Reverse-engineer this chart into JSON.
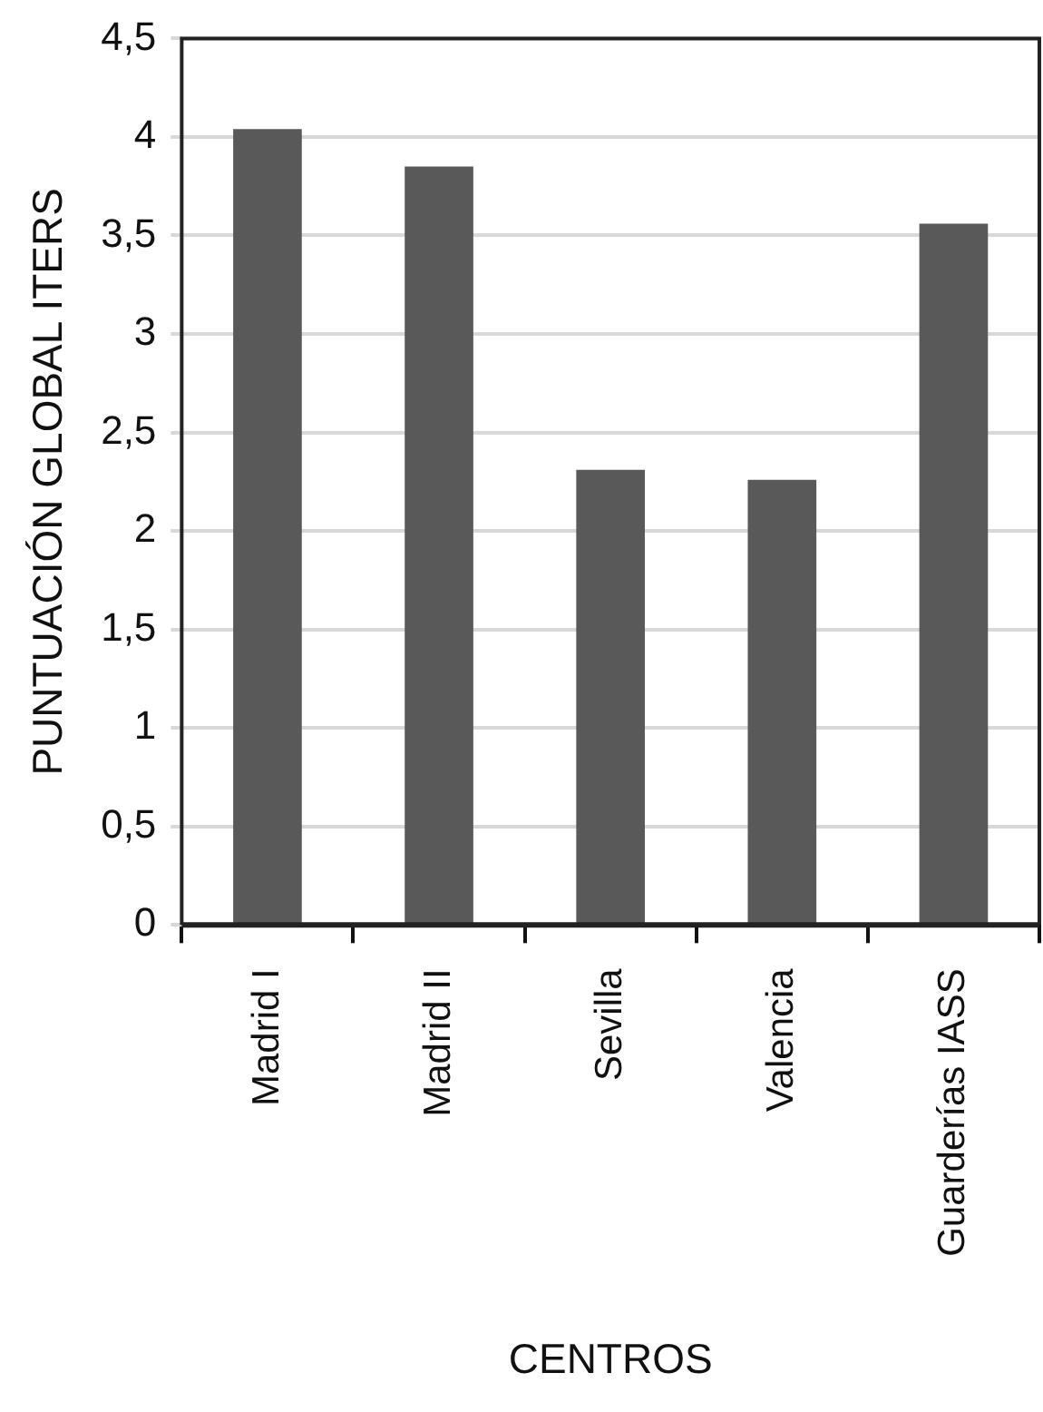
{
  "chart_data": {
    "type": "bar",
    "xlabel": "CENTROS",
    "ylabel": "PUNTUACIÓN GLOBAL ITERS",
    "categories": [
      "Madrid I",
      "Madrid II",
      "Sevilla",
      "Valencia",
      "Guarderías IASS"
    ],
    "values": [
      4.04,
      3.85,
      2.31,
      2.26,
      3.56
    ],
    "color": "#595959",
    "ylim": [
      0,
      4.5
    ],
    "yticks": [
      0,
      {
        "value": 0.5,
        "label": "0,5"
      },
      1,
      {
        "value": 1.5,
        "label": "1,5"
      },
      2,
      {
        "value": 2.5,
        "label": "2,5"
      },
      3,
      {
        "value": 3.5,
        "label": "3,5"
      },
      4,
      {
        "value": 4.5,
        "label": "4,5"
      }
    ],
    "grid": "y",
    "legend": false
  }
}
